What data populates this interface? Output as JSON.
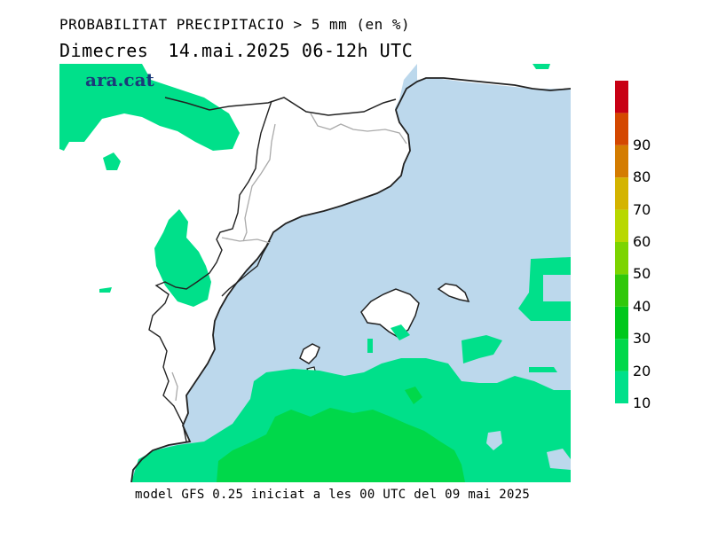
{
  "header": {
    "title": "PROBABILITAT PRECIPITACIO > 5 mm (en %)",
    "day": "Dimecres",
    "period": "14.mai.2025 06-12h UTC"
  },
  "logo": {
    "text": "ara.cat"
  },
  "footer": {
    "model_run": "model GFS 0.25 iniciat a les 00 UTC del 09 mai 2025"
  },
  "legend": {
    "levels": [
      {
        "value": "10",
        "color": "#00e08a"
      },
      {
        "value": "20",
        "color": "#00d84a"
      },
      {
        "value": "30",
        "color": "#00c81c"
      },
      {
        "value": "40",
        "color": "#30c80a"
      },
      {
        "value": "50",
        "color": "#7cd400"
      },
      {
        "value": "60",
        "color": "#b8d800"
      },
      {
        "value": "70",
        "color": "#d4b400"
      },
      {
        "value": "80",
        "color": "#d47c00"
      },
      {
        "value": "90",
        "color": "#d44800"
      },
      {
        "value": "",
        "color": "#c80014"
      }
    ]
  },
  "colors": {
    "sea": "#bcd8ec",
    "land": "#ffffff",
    "prob_10_20": "#00e08a",
    "prob_20_30": "#00d84a",
    "coast": "#222222",
    "border": "#aaaaaa"
  }
}
